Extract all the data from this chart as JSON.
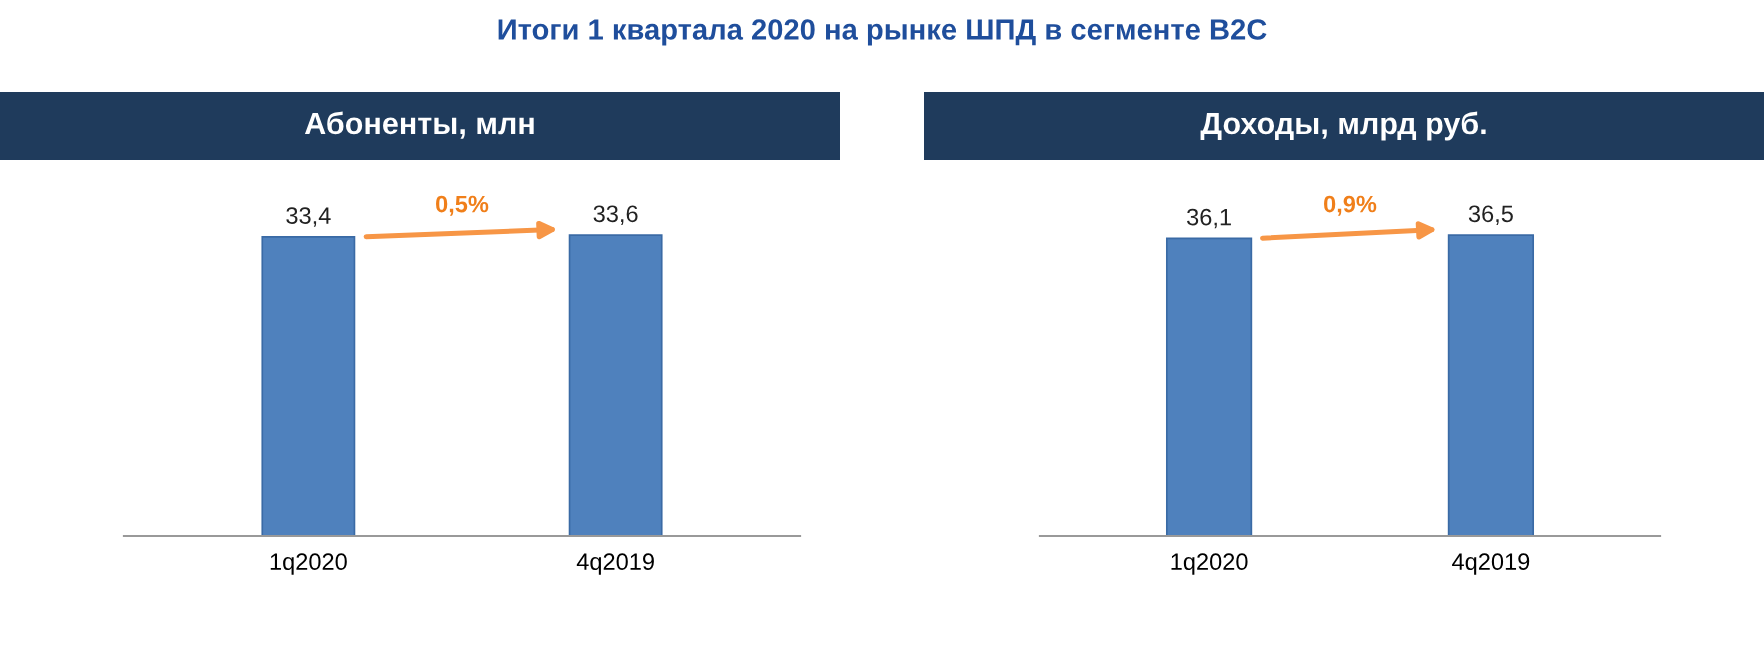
{
  "chart_data": [
    {
      "type": "bar",
      "title": "Абоненты, млн",
      "categories": [
        "1q2020",
        "4q2019"
      ],
      "values": [
        33.4,
        33.6
      ],
      "value_labels": [
        "33,4",
        "33,6"
      ],
      "color": "#4f81bd",
      "annotations": [
        "Итоги 1 квартала 2020 на рынке ШПД в сегменте B2C",
        "0,5%"
      ]
    },
    {
      "type": "bar",
      "title": "Доходы, млрд руб.",
      "categories": [
        "1q2020",
        "4q2019"
      ],
      "values": [
        36.1,
        36.5
      ],
      "value_labels": [
        "36,1",
        "36,5"
      ],
      "color": "#4f81bd",
      "annotations": [
        "0,9%"
      ]
    }
  ]
}
